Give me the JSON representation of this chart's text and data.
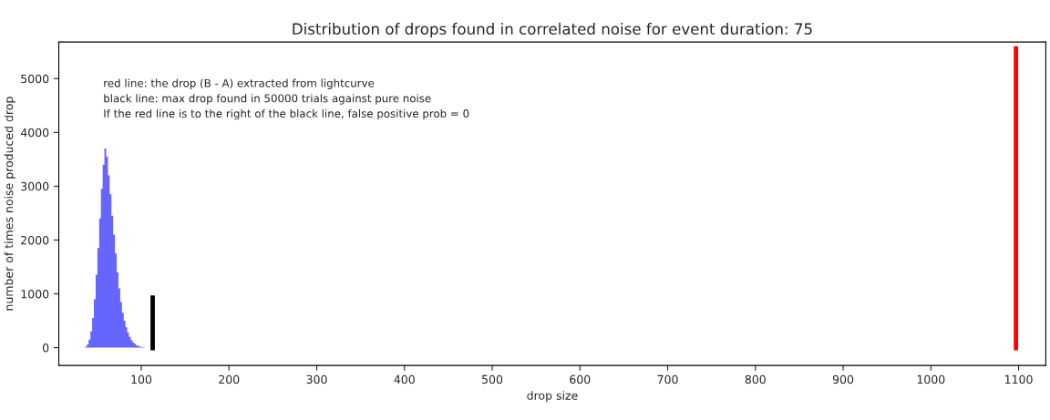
{
  "chart_data": {
    "type": "histogram",
    "title": "Distribution of drops found in correlated noise for event duration: 75",
    "xlabel": "drop size",
    "ylabel": "number of times noise produced drop",
    "bins": [
      36,
      38,
      40,
      42,
      44,
      46,
      48,
      50,
      52,
      54,
      56,
      58,
      60,
      62,
      64,
      66,
      68,
      70,
      72,
      74,
      76,
      78,
      80,
      82,
      84,
      86,
      88,
      90,
      92,
      94,
      96,
      98,
      100,
      102,
      104,
      106,
      108
    ],
    "values": [
      20,
      60,
      150,
      300,
      550,
      900,
      1350,
      1850,
      2400,
      2950,
      3400,
      3700,
      3550,
      3200,
      2850,
      2450,
      2100,
      1750,
      1400,
      1100,
      850,
      650,
      500,
      380,
      280,
      200,
      140,
      100,
      70,
      40,
      30,
      20,
      10,
      10,
      0,
      0
    ],
    "color": "#6666ff",
    "series": [
      {
        "type": "bar",
        "color": "#000000",
        "x": [
          113
        ],
        "base": [
          -50
        ],
        "values": [
          1020
        ]
      },
      {
        "type": "bar",
        "color": "#ff0000",
        "x": [
          1097
        ],
        "base": [
          -50
        ],
        "values": [
          5650
        ]
      }
    ],
    "annotations": [
      "red line: the drop (B - A) extracted from lightcurve",
      "black line: max drop found in 50000 trials against pure noise",
      "If the red line is to the right of the black line, false positive prob = 0"
    ],
    "xlim": [
      6,
      1131
    ],
    "ylim": [
      -330,
      5680
    ],
    "xticks": [
      100,
      200,
      300,
      400,
      500,
      600,
      700,
      800,
      900,
      1000,
      1100
    ],
    "yticks": [
      0,
      1000,
      2000,
      3000,
      4000,
      5000
    ],
    "grid": false
  }
}
